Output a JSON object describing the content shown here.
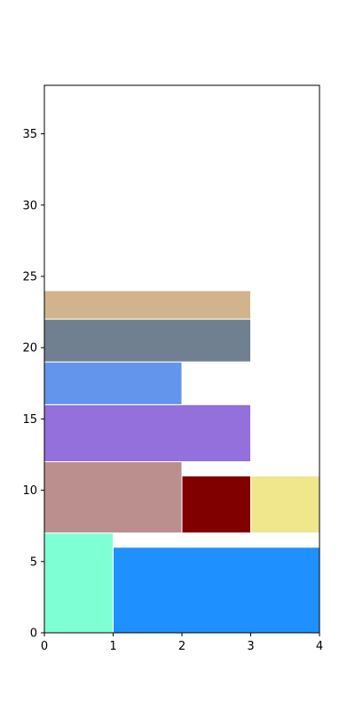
{
  "chart_data": {
    "type": "bar",
    "title": "",
    "xlabel": "",
    "ylabel": "",
    "xlim": [
      0,
      4
    ],
    "ylim": [
      0,
      38.4
    ],
    "grid": false,
    "xticks": [
      "0",
      "1",
      "2",
      "3",
      "4"
    ],
    "yticks": [
      "0",
      "5",
      "10",
      "15",
      "20",
      "25",
      "30",
      "35"
    ],
    "rectangles": [
      {
        "x0": 0,
        "x1": 1,
        "y0": 0,
        "y1": 7,
        "color": "#7fffd4"
      },
      {
        "x0": 1,
        "x1": 4,
        "y0": 0,
        "y1": 6,
        "color": "#1e90ff"
      },
      {
        "x0": 0,
        "x1": 2,
        "y0": 7,
        "y1": 12,
        "color": "#bc8f8f"
      },
      {
        "x0": 2,
        "x1": 3,
        "y0": 7,
        "y1": 11,
        "color": "#800000"
      },
      {
        "x0": 3,
        "x1": 4,
        "y0": 7,
        "y1": 11,
        "color": "#f0e68c"
      },
      {
        "x0": 0,
        "x1": 3,
        "y0": 12,
        "y1": 16,
        "color": "#9370db"
      },
      {
        "x0": 0,
        "x1": 2,
        "y0": 16,
        "y1": 19,
        "color": "#6495ed"
      },
      {
        "x0": 0,
        "x1": 3,
        "y0": 19,
        "y1": 22,
        "color": "#708090"
      },
      {
        "x0": 0,
        "x1": 3,
        "y0": 22,
        "y1": 24,
        "color": "#d2b48c"
      }
    ]
  }
}
